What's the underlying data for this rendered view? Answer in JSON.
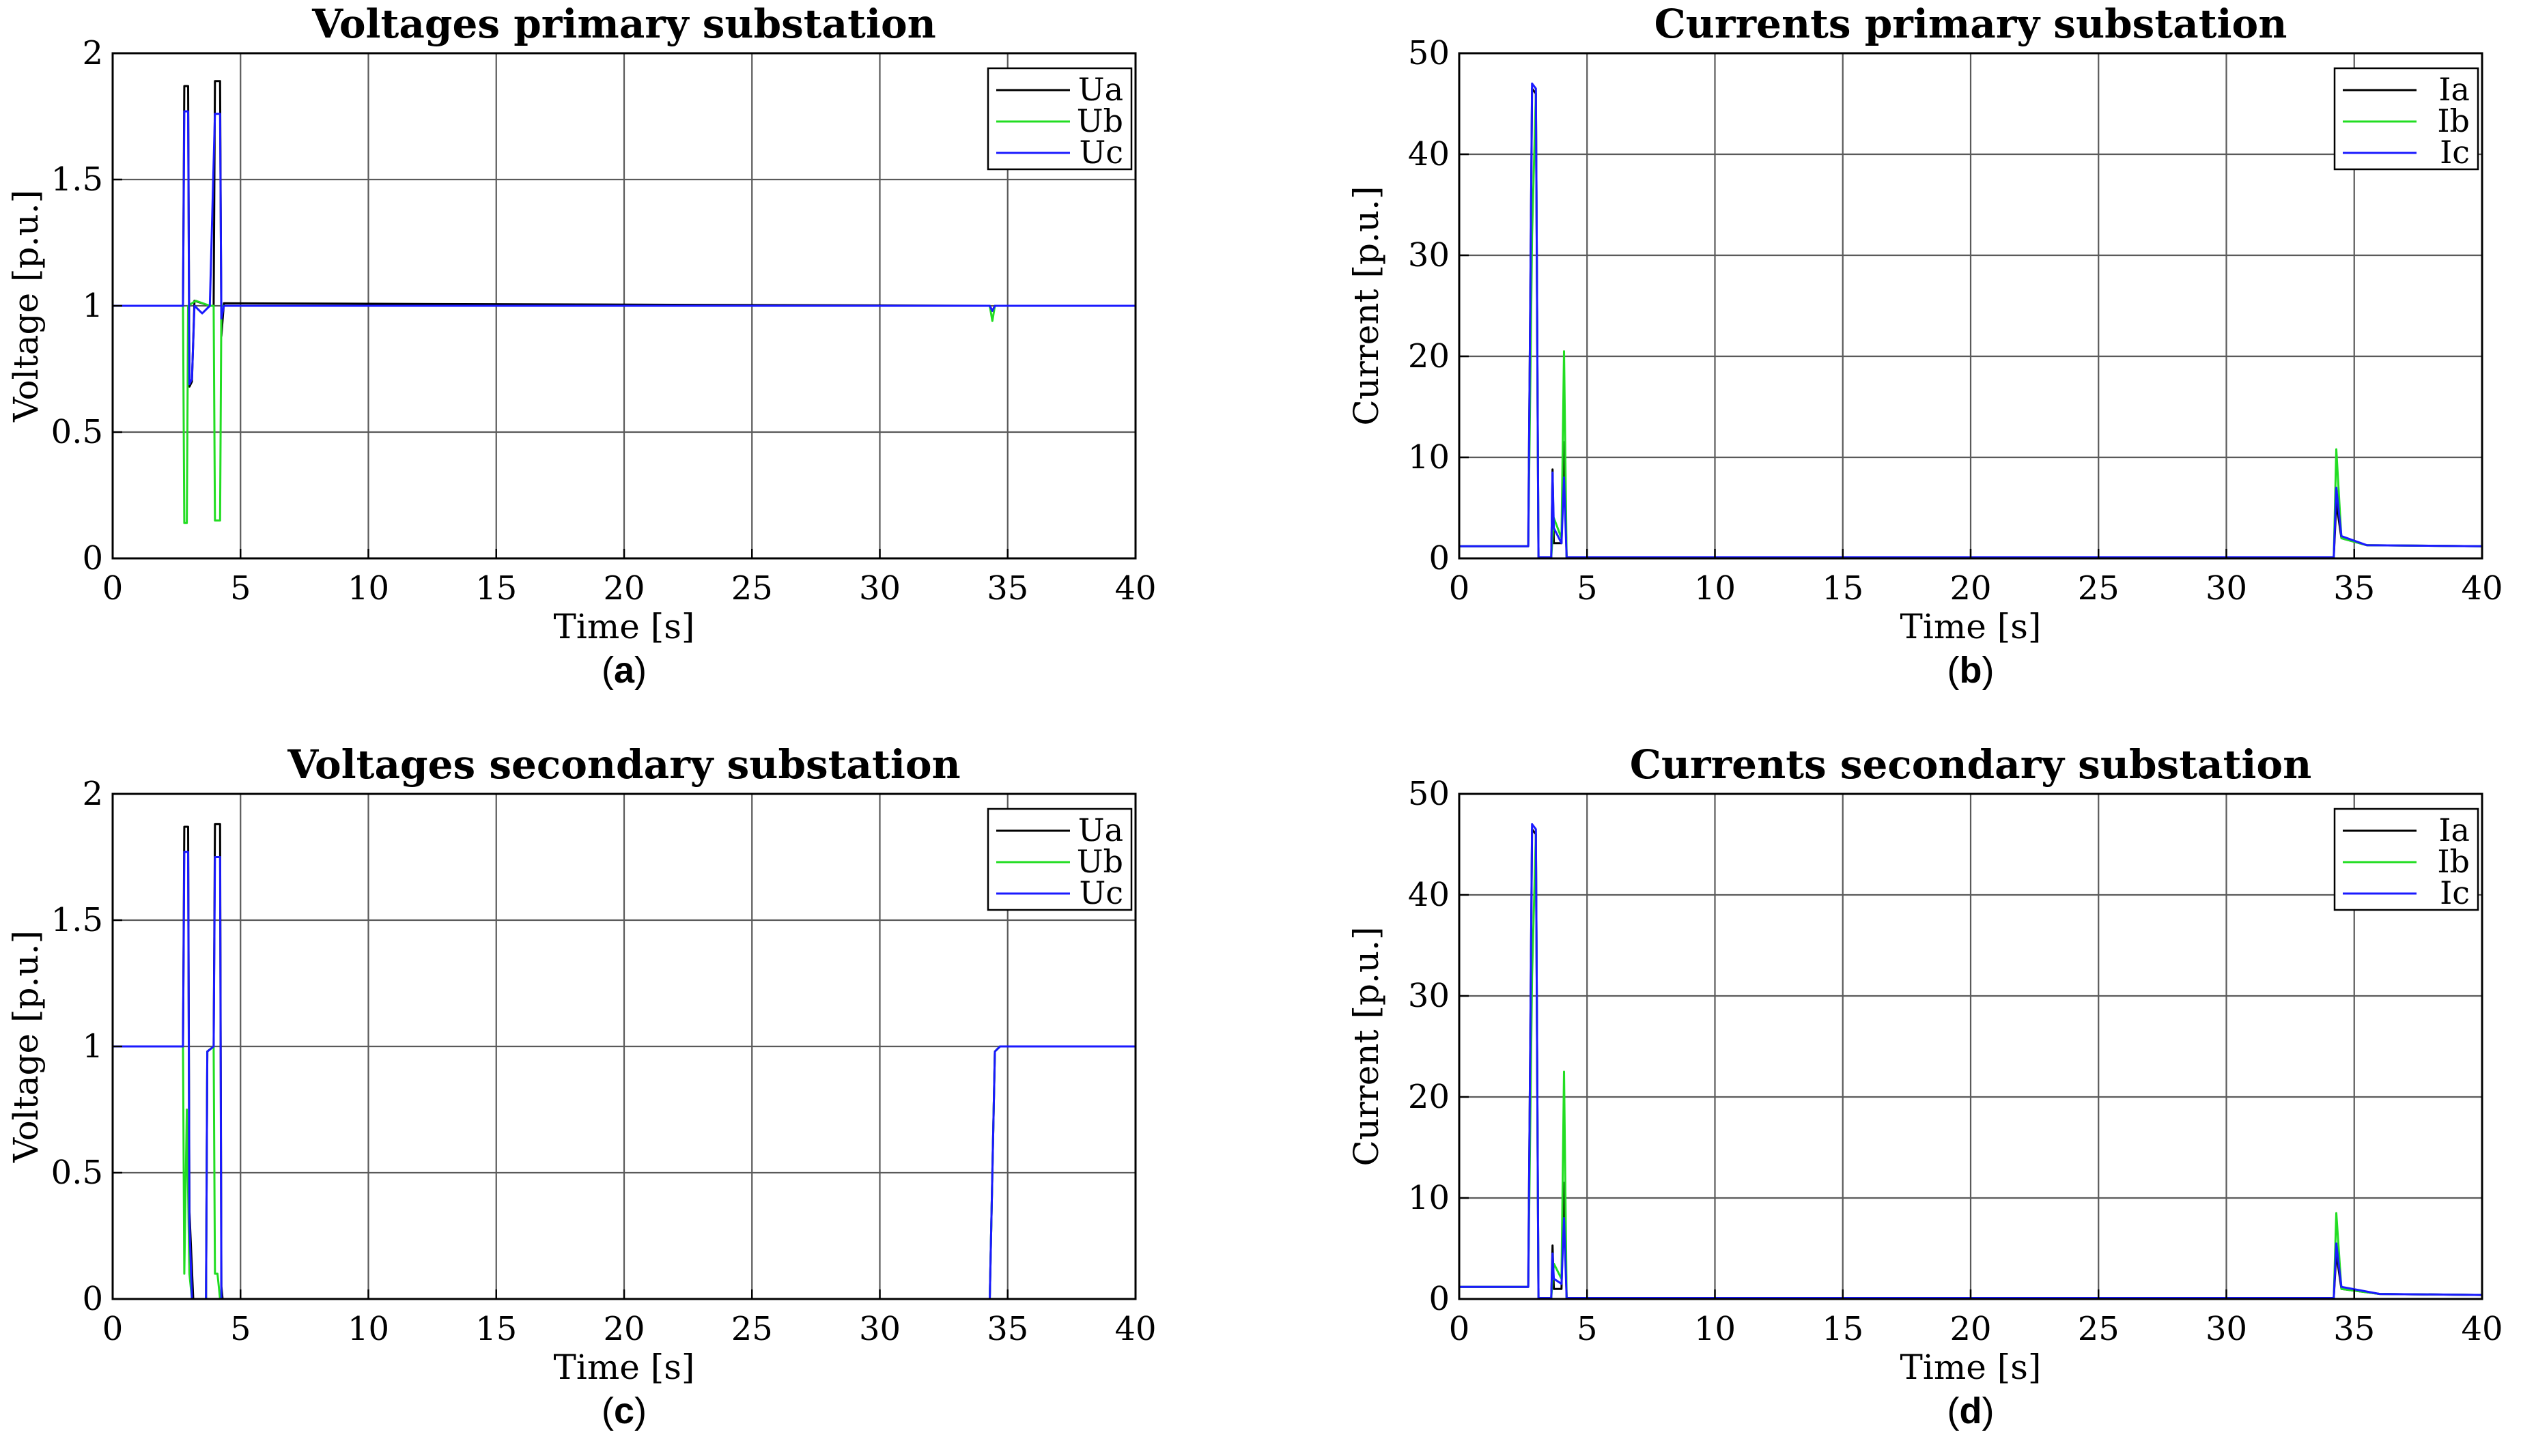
{
  "figure": {
    "panels": [
      {
        "id": "a",
        "caption_letter": "a",
        "caption_open": "(",
        "caption_close": ")"
      },
      {
        "id": "b",
        "caption_letter": "b",
        "caption_open": "(",
        "caption_close": ")"
      },
      {
        "id": "c",
        "caption_letter": "c",
        "caption_open": "(",
        "caption_close": ")"
      },
      {
        "id": "d",
        "caption_letter": "d",
        "caption_open": "(",
        "caption_close": ")"
      }
    ]
  },
  "chart_data": [
    {
      "type": "line",
      "title": "Voltages primary substation",
      "xlabel": "Time [s]",
      "ylabel": "Voltage [p.u.]",
      "xlim": [
        0,
        40
      ],
      "ylim": [
        0,
        2
      ],
      "xticks": [
        0,
        5,
        10,
        15,
        20,
        25,
        30,
        35,
        40
      ],
      "yticks": [
        0,
        0.5,
        1,
        1.5,
        2
      ],
      "ytick_labels": [
        "0",
        "0.5",
        "1",
        "1.5",
        "2"
      ],
      "grid": true,
      "legend_position": "top-right",
      "series": [
        {
          "name": "Ua",
          "color": "#000000",
          "points": [
            [
              0,
              1
            ],
            [
              2.75,
              1
            ],
            [
              2.8,
              1.87
            ],
            [
              2.95,
              1.87
            ],
            [
              3.0,
              0.68
            ],
            [
              3.1,
              0.7
            ],
            [
              3.2,
              1.02
            ],
            [
              3.8,
              1.0
            ],
            [
              3.95,
              1.0
            ],
            [
              4.0,
              1.89
            ],
            [
              4.2,
              1.89
            ],
            [
              4.25,
              0.88
            ],
            [
              4.35,
              1.01
            ],
            [
              34.3,
              1.0
            ],
            [
              34.4,
              0.98
            ],
            [
              34.5,
              1.0
            ],
            [
              40,
              1.0
            ]
          ]
        },
        {
          "name": "Ub",
          "color": "#22dd22",
          "points": [
            [
              0,
              1
            ],
            [
              2.75,
              1
            ],
            [
              2.8,
              0.14
            ],
            [
              2.9,
              0.14
            ],
            [
              2.95,
              1.0
            ],
            [
              3.25,
              1.02
            ],
            [
              3.8,
              1.0
            ],
            [
              3.95,
              1.0
            ],
            [
              4.0,
              0.15
            ],
            [
              4.2,
              0.15
            ],
            [
              4.25,
              1.0
            ],
            [
              34.3,
              1.0
            ],
            [
              34.4,
              0.94
            ],
            [
              34.5,
              1.0
            ],
            [
              40,
              1.0
            ]
          ]
        },
        {
          "name": "Uc",
          "color": "#1a1aff",
          "points": [
            [
              0,
              1
            ],
            [
              2.75,
              1
            ],
            [
              2.8,
              1.77
            ],
            [
              2.95,
              1.77
            ],
            [
              3.0,
              0.69
            ],
            [
              3.1,
              0.71
            ],
            [
              3.2,
              1.0
            ],
            [
              3.5,
              0.97
            ],
            [
              3.8,
              1.0
            ],
            [
              4.0,
              1.76
            ],
            [
              4.2,
              1.76
            ],
            [
              4.25,
              0.95
            ],
            [
              4.35,
              1.0
            ],
            [
              34.3,
              1.0
            ],
            [
              34.4,
              0.98
            ],
            [
              34.5,
              1.0
            ],
            [
              40,
              1.0
            ]
          ]
        }
      ]
    },
    {
      "type": "line",
      "title": "Currents primary substation",
      "xlabel": "Time [s]",
      "ylabel": "Current [p.u.]",
      "xlim": [
        0,
        40
      ],
      "ylim": [
        0,
        50
      ],
      "xticks": [
        0,
        5,
        10,
        15,
        20,
        25,
        30,
        35,
        40
      ],
      "yticks": [
        0,
        10,
        20,
        30,
        40,
        50
      ],
      "ytick_labels": [
        "0",
        "10",
        "20",
        "30",
        "40",
        "50"
      ],
      "grid": true,
      "legend_position": "top-right",
      "series": [
        {
          "name": "Ia",
          "color": "#000000",
          "points": [
            [
              0,
              1.2
            ],
            [
              2.7,
              1.2
            ],
            [
              2.85,
              46.5
            ],
            [
              3.0,
              46.0
            ],
            [
              3.1,
              0.1
            ],
            [
              3.6,
              0.1
            ],
            [
              3.65,
              8.8
            ],
            [
              3.7,
              1.5
            ],
            [
              4.0,
              1.5
            ],
            [
              4.1,
              11.5
            ],
            [
              4.2,
              0.1
            ],
            [
              34.2,
              0.1
            ],
            [
              34.3,
              5.5
            ],
            [
              34.5,
              2.0
            ],
            [
              35.5,
              1.3
            ],
            [
              40,
              1.2
            ]
          ]
        },
        {
          "name": "Ib",
          "color": "#22dd22",
          "points": [
            [
              0,
              1.2
            ],
            [
              2.7,
              1.2
            ],
            [
              2.8,
              21.5
            ],
            [
              2.85,
              32.0
            ],
            [
              3.0,
              46.0
            ],
            [
              3.1,
              0.1
            ],
            [
              3.6,
              0.1
            ],
            [
              3.7,
              4.0
            ],
            [
              4.0,
              2.0
            ],
            [
              4.1,
              20.5
            ],
            [
              4.2,
              0.1
            ],
            [
              34.2,
              0.1
            ],
            [
              34.3,
              10.8
            ],
            [
              34.5,
              2.0
            ],
            [
              35.5,
              1.3
            ],
            [
              40,
              1.2
            ]
          ]
        },
        {
          "name": "Ic",
          "color": "#1a1aff",
          "points": [
            [
              0,
              1.2
            ],
            [
              2.7,
              1.2
            ],
            [
              2.85,
              47.0
            ],
            [
              3.0,
              46.5
            ],
            [
              3.1,
              0.1
            ],
            [
              3.6,
              0.1
            ],
            [
              3.65,
              8.5
            ],
            [
              3.7,
              3.0
            ],
            [
              4.0,
              1.5
            ],
            [
              4.1,
              8.0
            ],
            [
              4.2,
              0.1
            ],
            [
              34.2,
              0.1
            ],
            [
              34.3,
              7.0
            ],
            [
              34.5,
              2.2
            ],
            [
              35.5,
              1.3
            ],
            [
              40,
              1.2
            ]
          ]
        }
      ]
    },
    {
      "type": "line",
      "title": "Voltages secondary substation",
      "xlabel": "Time [s]",
      "ylabel": "Voltage [p.u.]",
      "xlim": [
        0,
        40
      ],
      "ylim": [
        0,
        2
      ],
      "xticks": [
        0,
        5,
        10,
        15,
        20,
        25,
        30,
        35,
        40
      ],
      "yticks": [
        0,
        0.5,
        1,
        1.5,
        2
      ],
      "ytick_labels": [
        "0",
        "0.5",
        "1",
        "1.5",
        "2"
      ],
      "grid": true,
      "legend_position": "top-right",
      "series": [
        {
          "name": "Ua",
          "color": "#000000",
          "points": [
            [
              0,
              1
            ],
            [
              2.75,
              1
            ],
            [
              2.8,
              1.87
            ],
            [
              2.95,
              1.87
            ],
            [
              3.0,
              0.35
            ],
            [
              3.15,
              0.0
            ],
            [
              3.65,
              0.0
            ],
            [
              3.7,
              0.98
            ],
            [
              3.95,
              1.0
            ],
            [
              4.0,
              1.88
            ],
            [
              4.2,
              1.88
            ],
            [
              4.25,
              0.05
            ],
            [
              4.3,
              0.0
            ],
            [
              34.3,
              0.0
            ],
            [
              34.5,
              0.98
            ],
            [
              34.7,
              1.0
            ],
            [
              40,
              1.0
            ]
          ]
        },
        {
          "name": "Ub",
          "color": "#22dd22",
          "points": [
            [
              0,
              1
            ],
            [
              2.75,
              1
            ],
            [
              2.8,
              0.1
            ],
            [
              2.9,
              0.75
            ],
            [
              3.0,
              0.1
            ],
            [
              3.1,
              0.0
            ],
            [
              3.65,
              0.0
            ],
            [
              3.7,
              0.98
            ],
            [
              3.95,
              1.0
            ],
            [
              4.0,
              0.1
            ],
            [
              4.1,
              0.1
            ],
            [
              4.2,
              0.0
            ],
            [
              34.3,
              0.0
            ],
            [
              34.5,
              0.98
            ],
            [
              34.7,
              1.0
            ],
            [
              40,
              1.0
            ]
          ]
        },
        {
          "name": "Uc",
          "color": "#1a1aff",
          "points": [
            [
              0,
              1
            ],
            [
              2.75,
              1
            ],
            [
              2.8,
              1.77
            ],
            [
              2.95,
              1.77
            ],
            [
              3.0,
              0.3
            ],
            [
              3.1,
              0.0
            ],
            [
              3.65,
              0.0
            ],
            [
              3.7,
              0.98
            ],
            [
              3.95,
              1.0
            ],
            [
              4.0,
              1.75
            ],
            [
              4.2,
              1.75
            ],
            [
              4.25,
              0.0
            ],
            [
              4.75,
              0.0
            ],
            [
              34.3,
              0.0
            ],
            [
              34.5,
              0.98
            ],
            [
              34.7,
              1.0
            ],
            [
              40,
              1.0
            ]
          ]
        }
      ]
    },
    {
      "type": "line",
      "title": "Currents secondary substation",
      "xlabel": "Time [s]",
      "ylabel": "Current [p.u.]",
      "xlim": [
        0,
        40
      ],
      "ylim": [
        0,
        50
      ],
      "xticks": [
        0,
        5,
        10,
        15,
        20,
        25,
        30,
        35,
        40
      ],
      "yticks": [
        0,
        10,
        20,
        30,
        40,
        50
      ],
      "ytick_labels": [
        "0",
        "10",
        "20",
        "30",
        "40",
        "50"
      ],
      "grid": true,
      "legend_position": "top-right",
      "series": [
        {
          "name": "Ia",
          "color": "#000000",
          "points": [
            [
              0,
              1.2
            ],
            [
              2.7,
              1.2
            ],
            [
              2.85,
              46.5
            ],
            [
              3.0,
              46.0
            ],
            [
              3.1,
              0.1
            ],
            [
              3.6,
              0.1
            ],
            [
              3.65,
              5.3
            ],
            [
              3.7,
              1.0
            ],
            [
              4.0,
              1.0
            ],
            [
              4.1,
              11.5
            ],
            [
              4.2,
              0.1
            ],
            [
              34.2,
              0.1
            ],
            [
              34.3,
              4.5
            ],
            [
              34.5,
              1.0
            ],
            [
              36.0,
              0.5
            ],
            [
              40,
              0.4
            ]
          ]
        },
        {
          "name": "Ib",
          "color": "#22dd22",
          "points": [
            [
              0,
              1.2
            ],
            [
              2.7,
              1.2
            ],
            [
              2.8,
              22.0
            ],
            [
              2.85,
              32.0
            ],
            [
              3.0,
              46.0
            ],
            [
              3.1,
              0.1
            ],
            [
              3.6,
              0.1
            ],
            [
              3.7,
              3.5
            ],
            [
              4.0,
              2.0
            ],
            [
              4.1,
              22.5
            ],
            [
              4.2,
              0.1
            ],
            [
              34.2,
              0.1
            ],
            [
              34.3,
              8.5
            ],
            [
              34.5,
              1.0
            ],
            [
              36.0,
              0.5
            ],
            [
              40,
              0.4
            ]
          ]
        },
        {
          "name": "Ic",
          "color": "#1a1aff",
          "points": [
            [
              0,
              1.2
            ],
            [
              2.7,
              1.2
            ],
            [
              2.85,
              47.0
            ],
            [
              3.0,
              46.5
            ],
            [
              3.1,
              0.1
            ],
            [
              3.6,
              0.1
            ],
            [
              3.65,
              4.5
            ],
            [
              3.7,
              2.0
            ],
            [
              4.0,
              1.5
            ],
            [
              4.1,
              8.0
            ],
            [
              4.2,
              0.1
            ],
            [
              34.2,
              0.1
            ],
            [
              34.3,
              5.5
            ],
            [
              34.5,
              1.2
            ],
            [
              36.0,
              0.5
            ],
            [
              40,
              0.4
            ]
          ]
        }
      ]
    }
  ]
}
